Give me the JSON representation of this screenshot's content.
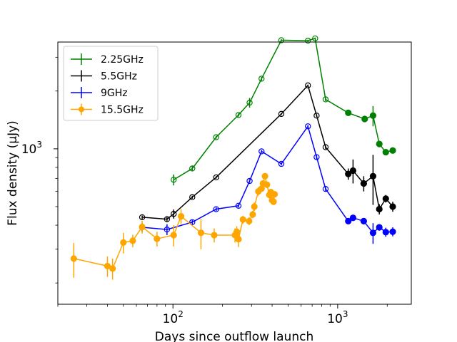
{
  "chart_data": {
    "type": "line",
    "title": "",
    "xlabel": "Days since outflow launch",
    "ylabel": "Flux density (μJy)",
    "xscale": "log",
    "yscale": "log",
    "xlim": [
      20,
      2800
    ],
    "ylim": [
      155,
      3600
    ],
    "xticks": [
      {
        "value": 100,
        "label": "10",
        "exp": "2"
      },
      {
        "value": 1000,
        "label": "10",
        "exp": "3"
      }
    ],
    "yticks": [
      {
        "value": 1000,
        "label": "10",
        "exp": "3"
      }
    ],
    "legend_position": "top-left",
    "series": [
      {
        "name": "2.25GHz",
        "color": "#008000",
        "marker": "circle",
        "points": [
          {
            "x": 101,
            "y": 690,
            "err": 45,
            "filled": false
          },
          {
            "x": 131,
            "y": 790,
            "err": 20,
            "filled": false
          },
          {
            "x": 183,
            "y": 1150,
            "err": 20,
            "filled": false
          },
          {
            "x": 250,
            "y": 1500,
            "err": 30,
            "filled": false
          },
          {
            "x": 292,
            "y": 1740,
            "err": 100,
            "filled": false
          },
          {
            "x": 345,
            "y": 2320,
            "err": 50,
            "filled": false
          },
          {
            "x": 455,
            "y": 3680,
            "err": 40,
            "filled": false
          },
          {
            "x": 660,
            "y": 3660,
            "err": 40,
            "filled": false
          },
          {
            "x": 730,
            "y": 3760,
            "err": 40,
            "filled": false
          },
          {
            "x": 845,
            "y": 1810,
            "err": 40,
            "filled": false
          },
          {
            "x": 1160,
            "y": 1540,
            "err": 40,
            "filled": true
          },
          {
            "x": 1460,
            "y": 1430,
            "err": 40,
            "filled": true
          },
          {
            "x": 1640,
            "y": 1490,
            "err": 180,
            "filled": true
          },
          {
            "x": 1790,
            "y": 1060,
            "err": 40,
            "filled": true
          },
          {
            "x": 1960,
            "y": 960,
            "err": 30,
            "filled": true
          },
          {
            "x": 2160,
            "y": 980,
            "err": 30,
            "filled": true
          }
        ]
      },
      {
        "name": "5.5GHz",
        "color": "#000000",
        "marker": "circle",
        "points": [
          {
            "x": 65,
            "y": 440,
            "err": 10,
            "filled": false
          },
          {
            "x": 92,
            "y": 430,
            "err": 10,
            "filled": false
          },
          {
            "x": 101,
            "y": 458,
            "err": 25,
            "filled": false
          },
          {
            "x": 131,
            "y": 560,
            "err": 10,
            "filled": false
          },
          {
            "x": 183,
            "y": 710,
            "err": 10,
            "filled": false
          },
          {
            "x": 455,
            "y": 1520,
            "err": 20,
            "filled": false
          },
          {
            "x": 660,
            "y": 2140,
            "err": 20,
            "filled": false
          },
          {
            "x": 745,
            "y": 1490,
            "err": 20,
            "filled": false
          },
          {
            "x": 845,
            "y": 1020,
            "err": 20,
            "filled": false
          },
          {
            "x": 1160,
            "y": 740,
            "err": 50,
            "filled": true
          },
          {
            "x": 1240,
            "y": 770,
            "err": 110,
            "filled": true
          },
          {
            "x": 1440,
            "y": 660,
            "err": 60,
            "filled": true
          },
          {
            "x": 1640,
            "y": 720,
            "err": 210,
            "filled": true
          },
          {
            "x": 1790,
            "y": 485,
            "err": 30,
            "filled": true
          },
          {
            "x": 1960,
            "y": 550,
            "err": 25,
            "filled": true
          },
          {
            "x": 2160,
            "y": 500,
            "err": 30,
            "filled": true
          }
        ]
      },
      {
        "name": "9GHz",
        "color": "#0000ff",
        "marker": "circle",
        "points": [
          {
            "x": 65,
            "y": 390,
            "err": 20,
            "filled": false
          },
          {
            "x": 92,
            "y": 380,
            "err": 25,
            "filled": false
          },
          {
            "x": 131,
            "y": 415,
            "err": 10,
            "filled": false
          },
          {
            "x": 183,
            "y": 485,
            "err": 10,
            "filled": false
          },
          {
            "x": 250,
            "y": 505,
            "err": 10,
            "filled": false
          },
          {
            "x": 292,
            "y": 680,
            "err": 15,
            "filled": false
          },
          {
            "x": 345,
            "y": 970,
            "err": 15,
            "filled": false
          },
          {
            "x": 455,
            "y": 835,
            "err": 15,
            "filled": false
          },
          {
            "x": 660,
            "y": 1310,
            "err": 20,
            "filled": false
          },
          {
            "x": 745,
            "y": 905,
            "err": 20,
            "filled": false
          },
          {
            "x": 845,
            "y": 618,
            "err": 15,
            "filled": false
          },
          {
            "x": 1160,
            "y": 420,
            "err": 15,
            "filled": true
          },
          {
            "x": 1240,
            "y": 437,
            "err": 15,
            "filled": true
          },
          {
            "x": 1440,
            "y": 420,
            "err": 15,
            "filled": true
          },
          {
            "x": 1640,
            "y": 365,
            "err": 45,
            "filled": true
          },
          {
            "x": 1790,
            "y": 390,
            "err": 15,
            "filled": true
          },
          {
            "x": 1960,
            "y": 368,
            "err": 20,
            "filled": true
          },
          {
            "x": 2160,
            "y": 370,
            "err": 20,
            "filled": true
          }
        ]
      },
      {
        "name": "15.5GHz",
        "color": "#ffa500",
        "marker": "circle",
        "points": [
          {
            "x": 25,
            "y": 268,
            "err": 55,
            "filled": true
          },
          {
            "x": 40,
            "y": 245,
            "err": 30,
            "filled": true
          },
          {
            "x": 43,
            "y": 238,
            "err": 30,
            "filled": true
          },
          {
            "x": 50,
            "y": 325,
            "err": 40,
            "filled": true
          },
          {
            "x": 57,
            "y": 332,
            "err": 25,
            "filled": true
          },
          {
            "x": 65,
            "y": 392,
            "err": 30,
            "filled": true
          },
          {
            "x": 80,
            "y": 340,
            "err": 30,
            "filled": true
          },
          {
            "x": 101,
            "y": 355,
            "err": 45,
            "filled": true
          },
          {
            "x": 112,
            "y": 445,
            "err": 40,
            "filled": true
          },
          {
            "x": 148,
            "y": 365,
            "err": 65,
            "filled": true
          },
          {
            "x": 178,
            "y": 355,
            "err": 30,
            "filled": true
          },
          {
            "x": 238,
            "y": 355,
            "err": 30,
            "filled": true
          },
          {
            "x": 244,
            "y": 370,
            "err": 25,
            "filled": true
          },
          {
            "x": 250,
            "y": 338,
            "err": 30,
            "filled": true
          },
          {
            "x": 266,
            "y": 428,
            "err": 20,
            "filled": true
          },
          {
            "x": 290,
            "y": 420,
            "err": 20,
            "filled": true
          },
          {
            "x": 305,
            "y": 455,
            "err": 20,
            "filled": true
          },
          {
            "x": 312,
            "y": 500,
            "err": 25,
            "filled": true
          },
          {
            "x": 330,
            "y": 600,
            "err": 30,
            "filled": true
          },
          {
            "x": 345,
            "y": 620,
            "err": 20,
            "filled": true
          },
          {
            "x": 352,
            "y": 660,
            "err": 25,
            "filled": true
          },
          {
            "x": 362,
            "y": 720,
            "err": 25,
            "filled": true
          },
          {
            "x": 372,
            "y": 650,
            "err": 25,
            "filled": true
          },
          {
            "x": 385,
            "y": 575,
            "err": 20,
            "filled": true
          },
          {
            "x": 393,
            "y": 595,
            "err": 20,
            "filled": true
          },
          {
            "x": 400,
            "y": 540,
            "err": 20,
            "filled": true
          },
          {
            "x": 408,
            "y": 530,
            "err": 20,
            "filled": true
          },
          {
            "x": 414,
            "y": 580,
            "err": 20,
            "filled": true
          }
        ]
      }
    ]
  }
}
